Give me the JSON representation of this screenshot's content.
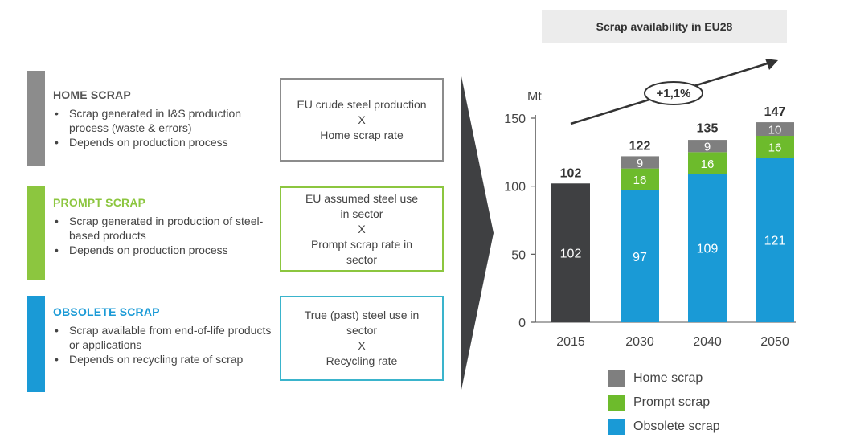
{
  "categories_panel": [
    {
      "title": "HOME SCRAP",
      "color": "#8c8c8c",
      "bullets": [
        "Scrap generated in I&S production process (waste & errors)",
        "Depends on production process"
      ],
      "formula": [
        "EU crude steel production",
        "X",
        "Home scrap rate"
      ],
      "border_color": "#8c8c8c"
    },
    {
      "title": "PROMPT SCRAP",
      "color": "#8cc63f",
      "bullets": [
        "Scrap generated in production of steel-based products",
        "Depends on production process"
      ],
      "formula": [
        "EU assumed steel use in sector",
        "X",
        "Prompt scrap rate in sector"
      ],
      "border_color": "#8cc63f"
    },
    {
      "title": "OBSOLETE SCRAP",
      "color": "#1a9ad6",
      "bullets": [
        "Scrap available from end-of-life products or applications",
        "Depends on recycling rate of scrap"
      ],
      "formula": [
        "True (past) steel use in sector",
        "X",
        "Recycling rate"
      ],
      "border_color": "#3ab4cc"
    }
  ],
  "chart_data": {
    "type": "bar",
    "title": "Scrap availability in EU28",
    "ylabel": "Mt",
    "ylim": [
      0,
      150
    ],
    "yticks": [
      0,
      50,
      100,
      150
    ],
    "categories": [
      "2015",
      "2030",
      "2040",
      "2050"
    ],
    "series": [
      {
        "name": "Obsolete scrap",
        "color": "#1a9ad6",
        "values": [
          null,
          97,
          109,
          121
        ]
      },
      {
        "name": "Prompt scrap",
        "color": "#6dbb2c",
        "values": [
          null,
          16,
          16,
          16
        ]
      },
      {
        "name": "Home scrap",
        "color": "#7f7f7f",
        "values": [
          null,
          9,
          9,
          10
        ]
      }
    ],
    "single_2015": {
      "value": 102,
      "color": "#3f4042"
    },
    "totals": [
      102,
      122,
      135,
      147
    ],
    "growth_annotation": "+1,1%",
    "legend": [
      "Home scrap",
      "Prompt scrap",
      "Obsolete scrap"
    ]
  }
}
